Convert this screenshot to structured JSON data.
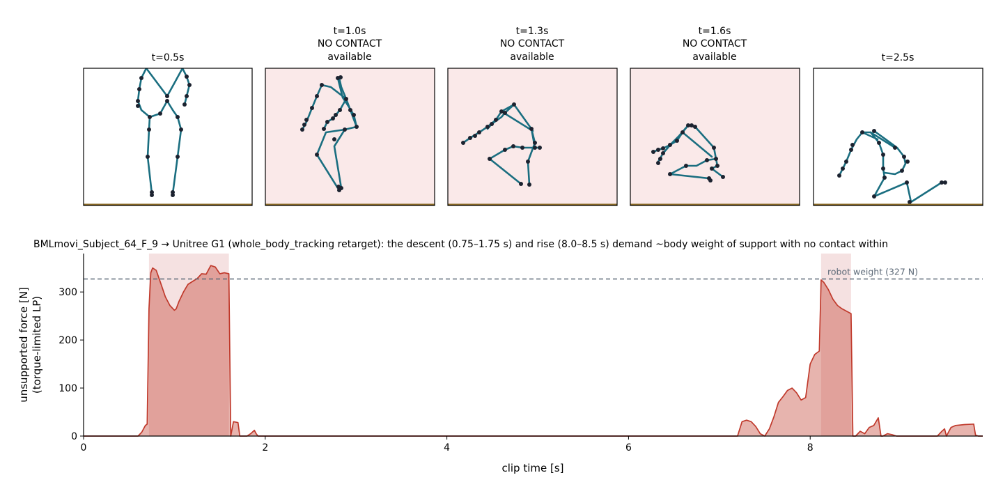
{
  "chart_data": [
    {
      "type": "diagram",
      "panels": [
        {
          "title": [
            "t=0.5s"
          ],
          "shaded": false
        },
        {
          "title": [
            "t=1.0s",
            "NO CONTACT",
            "available"
          ],
          "shaded": true
        },
        {
          "title": [
            "t=1.3s",
            "NO CONTACT",
            "available"
          ],
          "shaded": true
        },
        {
          "title": [
            "t=1.6s",
            "NO CONTACT",
            "available"
          ],
          "shaded": true
        },
        {
          "title": [
            "t=2.5s"
          ],
          "shaded": false
        }
      ],
      "colors": {
        "skeleton": "#1a6e80",
        "joint": "#1c2330",
        "ground": "#8a6a26",
        "shade": "#fae9e9"
      }
    },
    {
      "type": "area",
      "title": "BMLmovi_Subject_64_F_9 → Unitree G1 (whole_body_tracking retarget): the descent (0.75–1.75 s) and rise (8.0–8.5 s) demand ~body weight of support with no contact within",
      "xlabel": "clip time [s]",
      "ylabel": [
        "unsupported force [N]",
        "(torque-limited LP)"
      ],
      "xlim": [
        0,
        9.9
      ],
      "ylim": [
        0,
        380
      ],
      "xticks": [
        0,
        2,
        4,
        6,
        8
      ],
      "yticks": [
        0,
        100,
        200,
        300
      ],
      "grid": false,
      "reference_line": {
        "y": 327,
        "label": "robot weight (327 N)",
        "color": "#5d6a78"
      },
      "shaded_spans": [
        [
          0.72,
          1.6
        ],
        [
          8.12,
          8.45
        ]
      ],
      "series": [
        {
          "color": "#c0392b",
          "x": [
            0.0,
            0.6,
            0.64,
            0.68,
            0.7,
            0.72,
            0.74,
            0.76,
            0.8,
            0.85,
            0.9,
            0.95,
            1.0,
            1.02,
            1.05,
            1.1,
            1.15,
            1.2,
            1.25,
            1.3,
            1.35,
            1.4,
            1.45,
            1.5,
            1.55,
            1.6,
            1.62,
            1.65,
            1.7,
            1.72,
            1.76,
            1.8,
            1.84,
            1.88,
            1.9,
            1.92,
            7.2,
            7.25,
            7.3,
            7.35,
            7.4,
            7.45,
            7.5,
            7.55,
            7.6,
            7.65,
            7.7,
            7.75,
            7.8,
            7.85,
            7.9,
            7.95,
            8.0,
            8.05,
            8.1,
            8.12,
            8.15,
            8.2,
            8.25,
            8.3,
            8.35,
            8.4,
            8.45,
            8.47,
            8.5,
            8.55,
            8.6,
            8.65,
            8.7,
            8.75,
            8.78,
            8.8,
            8.85,
            8.9,
            8.95,
            9.0,
            9.4,
            9.45,
            9.48,
            9.5,
            9.55,
            9.6,
            9.7,
            9.8,
            9.82,
            9.85,
            9.9
          ],
          "y": [
            0,
            0,
            8,
            22,
            25,
            265,
            340,
            350,
            345,
            318,
            290,
            272,
            262,
            265,
            280,
            300,
            316,
            322,
            328,
            338,
            337,
            355,
            352,
            338,
            340,
            338,
            0,
            30,
            28,
            0,
            0,
            0,
            5,
            12,
            5,
            0,
            0,
            30,
            33,
            30,
            20,
            5,
            0,
            15,
            40,
            70,
            82,
            95,
            100,
            90,
            75,
            80,
            150,
            170,
            177,
            325,
            320,
            305,
            285,
            272,
            265,
            260,
            255,
            0,
            0,
            10,
            5,
            18,
            22,
            38,
            0,
            0,
            5,
            3,
            0,
            0,
            0,
            10,
            15,
            0,
            18,
            22,
            24,
            25,
            2,
            0,
            0
          ]
        }
      ]
    }
  ]
}
